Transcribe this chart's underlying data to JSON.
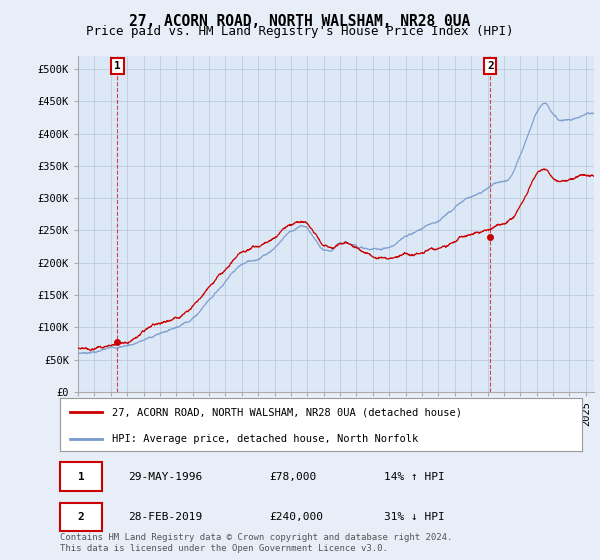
{
  "title": "27, ACORN ROAD, NORTH WALSHAM, NR28 0UA",
  "subtitle": "Price paid vs. HM Land Registry's House Price Index (HPI)",
  "xlim_start": 1994.0,
  "xlim_end": 2025.5,
  "ylim_min": 0,
  "ylim_max": 520000,
  "yticks": [
    0,
    50000,
    100000,
    150000,
    200000,
    250000,
    300000,
    350000,
    400000,
    450000,
    500000
  ],
  "ytick_labels": [
    "£0",
    "£50K",
    "£100K",
    "£150K",
    "£200K",
    "£250K",
    "£300K",
    "£350K",
    "£400K",
    "£450K",
    "£500K"
  ],
  "sale1_year": 1996.41,
  "sale1_price": 78000,
  "sale1_label": "1",
  "sale1_date": "29-MAY-1996",
  "sale1_hpi_text": "14% ↑ HPI",
  "sale2_year": 2019.17,
  "sale2_price": 240000,
  "sale2_label": "2",
  "sale2_date": "28-FEB-2019",
  "sale2_hpi_text": "31% ↓ HPI",
  "red_line_color": "#cc0000",
  "blue_line_color": "#7799cc",
  "grid_color": "#bbccdd",
  "bg_color": "#e8eef8",
  "plot_bg": "#dce8f5",
  "legend_label_red": "27, ACORN ROAD, NORTH WALSHAM, NR28 0UA (detached house)",
  "legend_label_blue": "HPI: Average price, detached house, North Norfolk",
  "footer": "Contains HM Land Registry data © Crown copyright and database right 2024.\nThis data is licensed under the Open Government Licence v3.0.",
  "title_fontsize": 10.5,
  "subtitle_fontsize": 9,
  "tick_fontsize": 7.5,
  "legend_fontsize": 8
}
